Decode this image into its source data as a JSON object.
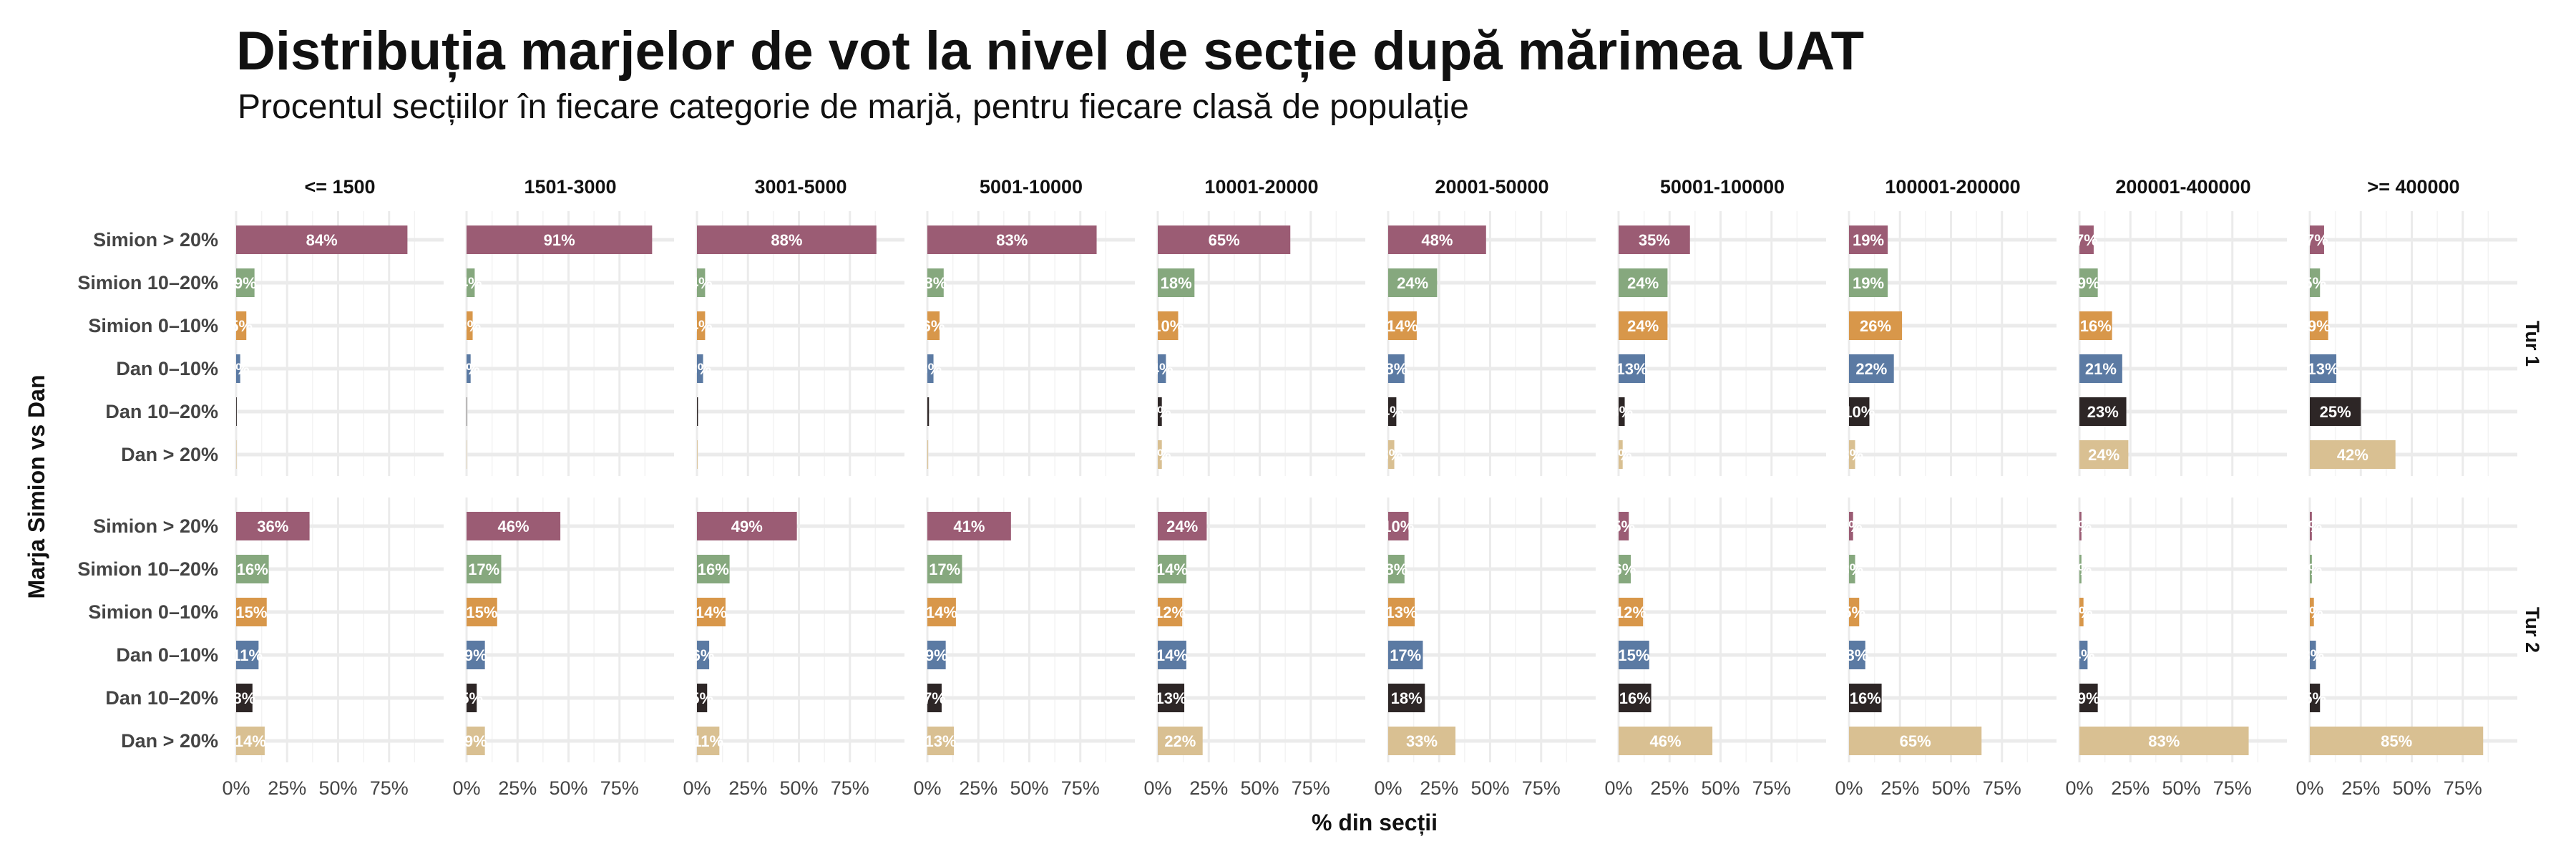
{
  "title": "Distribuția marjelor de vot la nivel de secție după mărimea UAT",
  "subtitle": "Procentul secțiilor în fiecare categorie de marjă, pentru fiecare clasă de populație",
  "chart_data": {
    "type": "bar",
    "orientation": "horizontal",
    "xlabel": "% din secții",
    "ylabel": "Marja Simion vs Dan",
    "xlim": [
      0,
      100
    ],
    "x_ticks": [
      "0%",
      "25%",
      "50%",
      "75%"
    ],
    "grid": true,
    "columns": [
      "<= 1500",
      "1501-3000",
      "3001-5000",
      "5001-10000",
      "10001-20000",
      "20001-50000",
      "50001-100000",
      "100001-200000",
      "200001-400000",
      ">= 400000"
    ],
    "categories": [
      "Simion > 20%",
      "Simion 10–20%",
      "Simion 0–10%",
      "Dan 0–10%",
      "Dan 10–20%",
      "Dan > 20%"
    ],
    "category_colors": [
      "#9b5c74",
      "#86a87e",
      "#d8974a",
      "#5b7aa3",
      "#2d2626",
      "#d9c092"
    ],
    "panels": [
      {
        "name": "Tur 1",
        "values": [
          [
            84,
            9,
            5,
            2,
            0.3,
            0.2
          ],
          [
            91,
            4,
            3,
            2,
            0.2,
            0.2
          ],
          [
            88,
            4,
            4,
            3,
            0.5,
            0.3
          ],
          [
            83,
            8,
            6,
            3,
            0.8,
            0.4
          ],
          [
            65,
            18,
            10,
            4,
            2,
            2
          ],
          [
            48,
            24,
            14,
            8,
            4,
            3
          ],
          [
            35,
            24,
            24,
            13,
            3,
            2
          ],
          [
            19,
            19,
            26,
            22,
            10,
            3
          ],
          [
            7,
            9,
            16,
            21,
            23,
            24
          ],
          [
            7,
            5,
            9,
            13,
            25,
            42
          ]
        ]
      },
      {
        "name": "Tur 2",
        "values": [
          [
            36,
            16,
            15,
            11,
            8,
            14
          ],
          [
            46,
            17,
            15,
            9,
            5,
            9
          ],
          [
            49,
            16,
            14,
            6,
            5,
            11
          ],
          [
            41,
            17,
            14,
            9,
            7,
            13
          ],
          [
            24,
            14,
            12,
            14,
            13,
            22
          ],
          [
            10,
            8,
            13,
            17,
            18,
            33
          ],
          [
            5,
            6,
            12,
            15,
            16,
            46
          ],
          [
            2,
            3,
            5,
            8,
            16,
            65
          ],
          [
            1,
            1,
            2,
            4,
            9,
            83
          ],
          [
            1,
            1,
            2,
            3,
            5,
            85
          ]
        ]
      }
    ]
  }
}
